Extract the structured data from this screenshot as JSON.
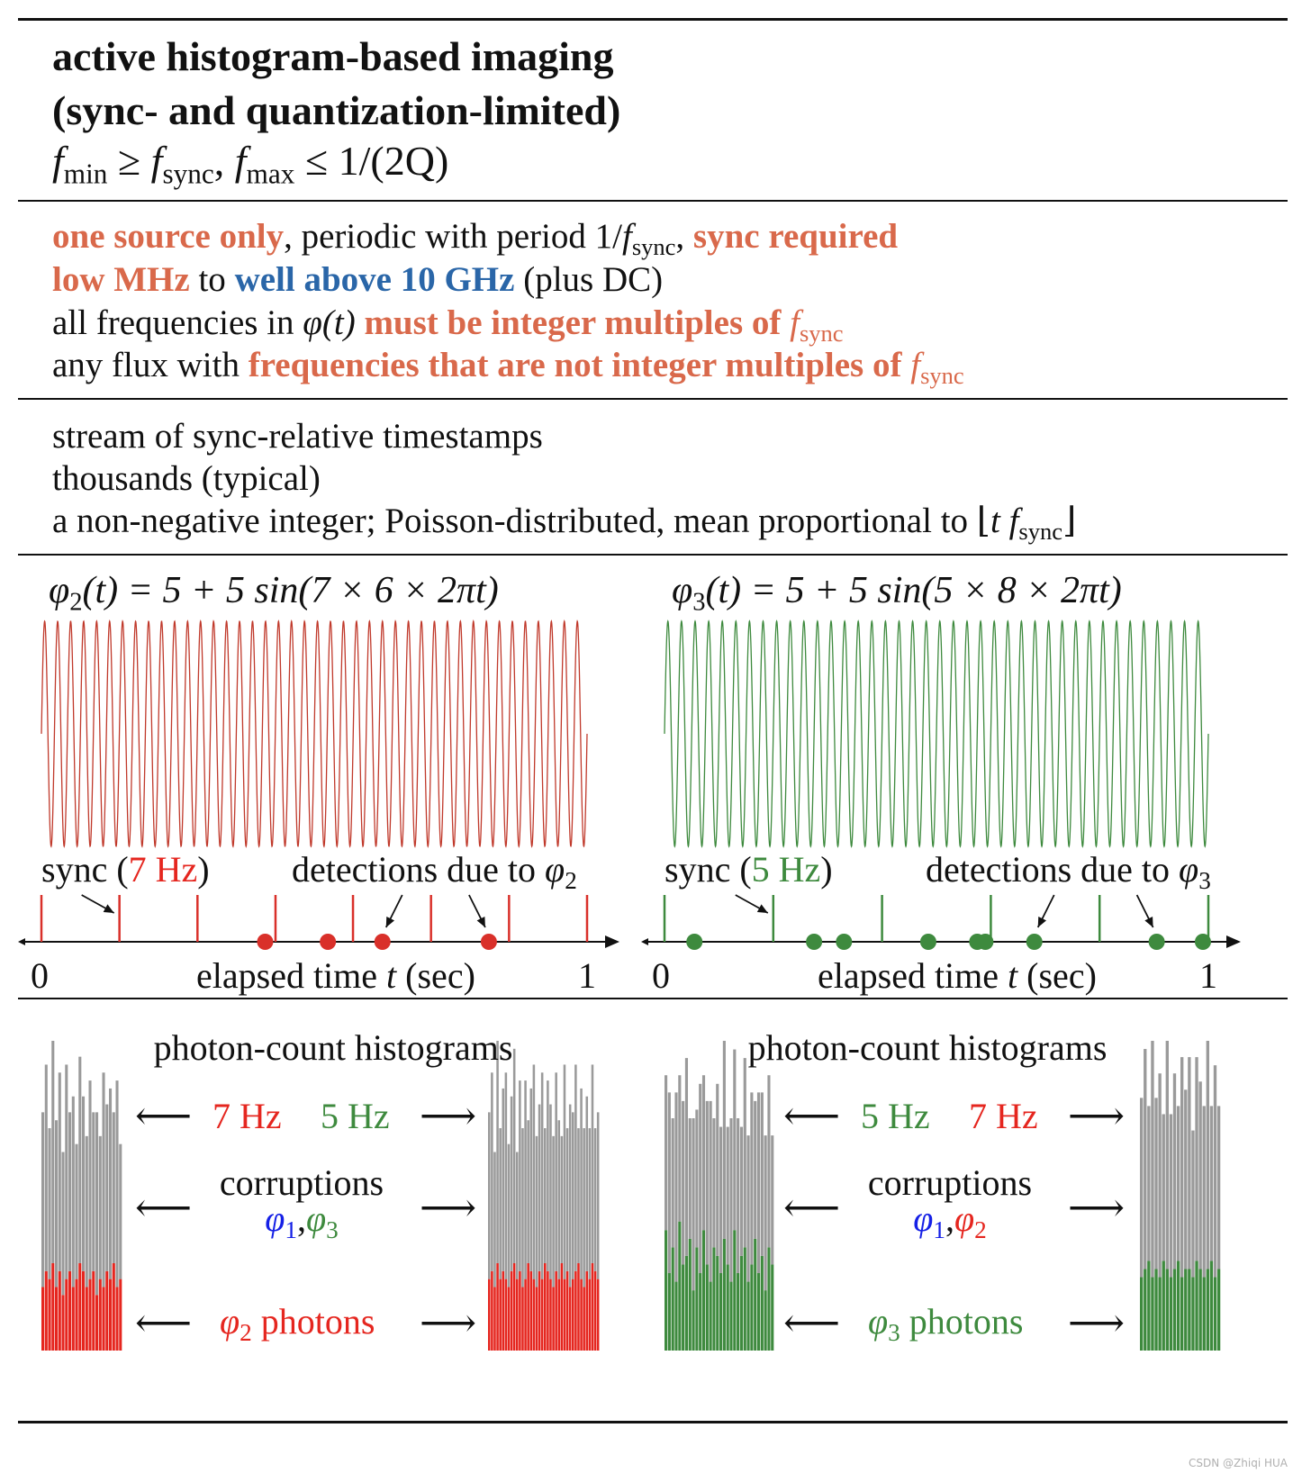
{
  "header": {
    "title_line1": "active histogram-based imaging",
    "title_line2": "(sync- and quantization-limited)",
    "formula": {
      "f1": "f",
      "f1_sub": "min",
      "ge": " ≥ ",
      "f2": "f",
      "f2_sub": "sync",
      "sep": ", ",
      "f3": "f",
      "f3_sub": "max",
      "le": " ≤ ",
      "rhs": "1/(2Q)"
    }
  },
  "section2": {
    "l1_a": "one source only",
    "l1_b": ", periodic with period 1/",
    "l1_f": "f",
    "l1_sub": "sync",
    "l1_c": ", ",
    "l1_d": "sync required",
    "l2_a": "low MHz",
    "l2_b": " to ",
    "l2_c": "well above 10 GHz",
    "l2_d": " (plus DC)",
    "l3_a": "all frequencies in ",
    "l3_phi": "φ(t)",
    "l3_b": " must be integer multiples of ",
    "l3_f": "f",
    "l3_sub": "sync",
    "l4_a": "any flux with ",
    "l4_b": "frequencies that are not integer multiples of ",
    "l4_f": "f",
    "l4_sub": "sync"
  },
  "section3": {
    "l1": "stream of sync-relative timestamps",
    "l2": "thousands (typical)",
    "l3_a": "a non-negative integer; Poisson-distributed, mean proportional to ⌊",
    "l3_t": "t f",
    "l3_sub": "sync",
    "l3_b": "⌋"
  },
  "panel_left": {
    "formula_phi": "φ",
    "formula_sub": "2",
    "formula_rest": "(t) = 5 + 5 sin(7 × 6 × 2πt)",
    "sync_a": "sync (",
    "sync_hz": "7 Hz",
    "sync_b": ")",
    "det_a": "detections due to ",
    "det_phi": "φ",
    "det_sub": "2",
    "axis_start": "0",
    "axis_end": "1",
    "axis_label": "elapsed time ",
    "axis_t": "t",
    "axis_unit": " (sec)"
  },
  "panel_right": {
    "formula_phi": "φ",
    "formula_sub": "3",
    "formula_rest": "(t) = 5 + 5 sin(5 × 8 × 2πt)",
    "sync_a": "sync (",
    "sync_hz": "5 Hz",
    "sync_b": ")",
    "det_a": "detections due to ",
    "det_phi": "φ",
    "det_sub": "3",
    "axis_start": "0",
    "axis_end": "1",
    "axis_label": "elapsed time ",
    "axis_t": "t",
    "axis_unit": " (sec)"
  },
  "hist_left": {
    "title": "photon-count histograms",
    "hz_a": "7 Hz",
    "hz_b": "5 Hz",
    "corr": "corruptions",
    "c_phi1": "φ",
    "c_sub1": "1",
    "c_comma": ",",
    "c_phi2": "φ",
    "c_sub2": "3",
    "ph_phi": "φ",
    "ph_sub": "2",
    "ph_word": " photons"
  },
  "hist_right": {
    "title": "photon-count histograms",
    "hz_a": "5 Hz",
    "hz_b": "7 Hz",
    "corr": "corruptions",
    "c_phi1": "φ",
    "c_sub1": "1",
    "c_comma": ",",
    "c_phi2": "φ",
    "c_sub2": "2",
    "ph_phi": "φ",
    "ph_sub": "3",
    "ph_word": " photons"
  },
  "arrow_glyph": "⟵",
  "arrow_glyph_r": "⟶",
  "watermark": "CSDN @Zhiqi HUA",
  "colors": {
    "red": "#e5261f",
    "green": "#3e8a3e",
    "blue": "#1520e6",
    "orange": "#d9694b",
    "steelblue": "#2a66a8",
    "gray": "#9a9a9a"
  },
  "chart_data": [
    {
      "type": "line",
      "title": "φ2(t) = 5 + 5 sin(7 × 6 × 2πt)",
      "function": "5 + 5*sin(42*2*pi*t)",
      "frequency_hz": 42,
      "x_range": [
        0,
        1
      ],
      "y_range": [
        0,
        10
      ],
      "color": "#c0392b"
    },
    {
      "type": "line",
      "title": "φ3(t) = 5 + 5 sin(5 × 8 × 2πt)",
      "function": "5 + 5*sin(40*2*pi*t)",
      "frequency_hz": 40,
      "x_range": [
        0,
        1
      ],
      "y_range": [
        0,
        10
      ],
      "color": "#3e8a3e"
    },
    {
      "type": "scatter",
      "title": "sync (7 Hz) / detections due to φ2",
      "x_range": [
        0,
        1
      ],
      "sync_times": [
        0,
        0.143,
        0.286,
        0.429,
        0.571,
        0.714,
        0.857,
        1.0
      ],
      "sync_hz": 7,
      "detections": [
        0.41,
        0.525,
        0.625,
        0.82
      ]
    },
    {
      "type": "scatter",
      "title": "sync (5 Hz) / detections due to φ3",
      "x_range": [
        0,
        1
      ],
      "sync_times": [
        0,
        0.2,
        0.4,
        0.6,
        0.8,
        1.0
      ],
      "sync_hz": 5,
      "detections": [
        0.055,
        0.275,
        0.33,
        0.485,
        0.575,
        0.59,
        0.68,
        0.905,
        0.99
      ]
    },
    {
      "type": "bar",
      "title": "photon-count histogram (φ2 sync 7 Hz)",
      "stacked": true,
      "bins": 24,
      "series": [
        {
          "name": "φ2 photons",
          "color": "#e5261f",
          "values": [
            8,
            10,
            9,
            11,
            8,
            10,
            7,
            9,
            10,
            8,
            9,
            11,
            10,
            8,
            9,
            10,
            7,
            9,
            8,
            10,
            9,
            11,
            8,
            9
          ]
        },
        {
          "name": "corruptions",
          "color": "#9a9a9a",
          "values": [
            22,
            26,
            19,
            28,
            21,
            25,
            18,
            27,
            20,
            24,
            17,
            26,
            22,
            19,
            25,
            20,
            23,
            18,
            27,
            21,
            24,
            19,
            26,
            17
          ]
        }
      ]
    },
    {
      "type": "bar",
      "title": "photon-count histogram (φ2 sync 5 Hz)",
      "stacked": true,
      "bins": 40,
      "series": [
        {
          "name": "φ2 photons",
          "color": "#e5261f",
          "values": [
            9,
            10,
            8,
            11,
            9,
            10,
            9,
            8,
            10,
            11,
            9,
            10,
            8,
            9,
            11,
            10,
            9,
            8,
            10,
            9,
            11,
            10,
            9,
            8,
            10,
            9,
            11,
            9,
            10,
            8,
            9,
            10,
            11,
            9,
            8,
            10,
            9,
            11,
            10,
            9
          ]
        },
        {
          "name": "corruptions",
          "color": "#9a9a9a",
          "values": [
            21,
            25,
            17,
            28,
            19,
            23,
            26,
            18,
            22,
            27,
            16,
            24,
            20,
            25,
            18,
            23,
            27,
            19,
            21,
            26,
            17,
            24,
            22,
            19,
            25,
            20,
            16,
            27,
            18,
            23,
            21,
            26,
            17,
            24,
            20,
            22,
            19,
            25,
            18,
            21
          ]
        }
      ]
    },
    {
      "type": "bar",
      "title": "photon-count histogram (φ3 sync 5 Hz)",
      "stacked": true,
      "bins": 32,
      "series": [
        {
          "name": "φ3 photons",
          "color": "#3e8a3e",
          "values": [
            14,
            9,
            12,
            8,
            15,
            10,
            11,
            13,
            7,
            12,
            9,
            14,
            10,
            8,
            12,
            11,
            9,
            13,
            10,
            8,
            14,
            9,
            11,
            12,
            8,
            10,
            13,
            9,
            11,
            7,
            12,
            10
          ]
        },
        {
          "name": "corruptions",
          "color": "#9a9a9a",
          "values": [
            18,
            21,
            15,
            22,
            17,
            19,
            23,
            14,
            20,
            16,
            22,
            18,
            19,
            21,
            15,
            20,
            17,
            23,
            16,
            19,
            21,
            18,
            15,
            22,
            17,
            20,
            16,
            21,
            19,
            18,
            20,
            15
          ]
        }
      ]
    },
    {
      "type": "bar",
      "title": "photon-count histogram (φ3 sync 7 Hz)",
      "stacked": true,
      "bins": 22,
      "series": [
        {
          "name": "φ3 photons",
          "color": "#3e8a3e",
          "values": [
            9,
            10,
            11,
            9,
            10,
            9,
            11,
            10,
            9,
            10,
            11,
            9,
            10,
            10,
            9,
            11,
            10,
            9,
            10,
            11,
            9,
            10
          ]
        },
        {
          "name": "corruptions",
          "color": "#9a9a9a",
          "values": [
            22,
            27,
            19,
            29,
            21,
            25,
            18,
            28,
            20,
            24,
            19,
            27,
            22,
            26,
            18,
            25,
            23,
            21,
            28,
            19,
            26,
            20
          ]
        }
      ]
    }
  ]
}
